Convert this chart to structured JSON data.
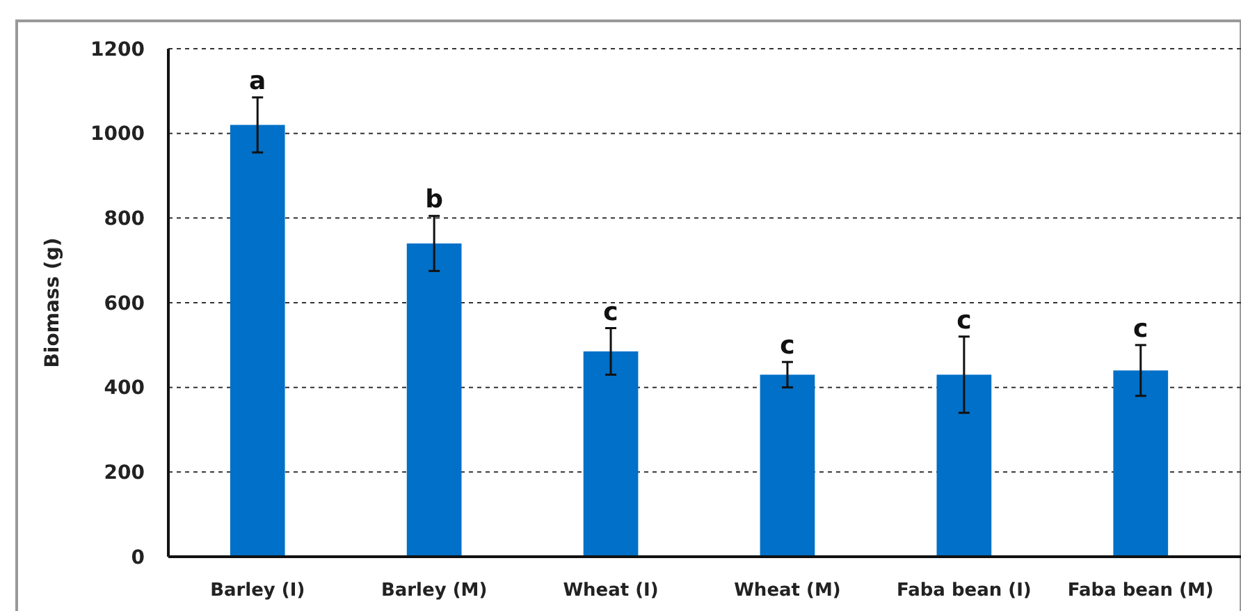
{
  "chart_data": {
    "type": "bar",
    "ylabel": "Biomass (g)",
    "categories": [
      "Barley (I)",
      "Barley (M)",
      "Wheat (I)",
      "Wheat (M)",
      "Faba bean (I)",
      "Faba bean (M)"
    ],
    "values": [
      1020,
      740,
      485,
      430,
      430,
      440
    ],
    "errors": [
      65,
      65,
      55,
      30,
      90,
      60
    ],
    "color": "#0070c8",
    "ylim": [
      0,
      1200
    ],
    "yticks": [
      0,
      200,
      400,
      600,
      800,
      1000,
      1200
    ],
    "grid": "y",
    "annotations": [
      {
        "text": "a",
        "x": "Barley (I)",
        "y": 1085
      },
      {
        "text": "b",
        "x": "Barley (M)",
        "y": 805
      },
      {
        "text": "c",
        "x": "Wheat (I)",
        "y": 540
      },
      {
        "text": "c",
        "x": "Wheat (M)",
        "y": 460
      },
      {
        "text": "c",
        "x": "Faba bean (I)",
        "y": 520
      },
      {
        "text": "c",
        "x": "Faba bean (M)",
        "y": 500
      }
    ]
  }
}
